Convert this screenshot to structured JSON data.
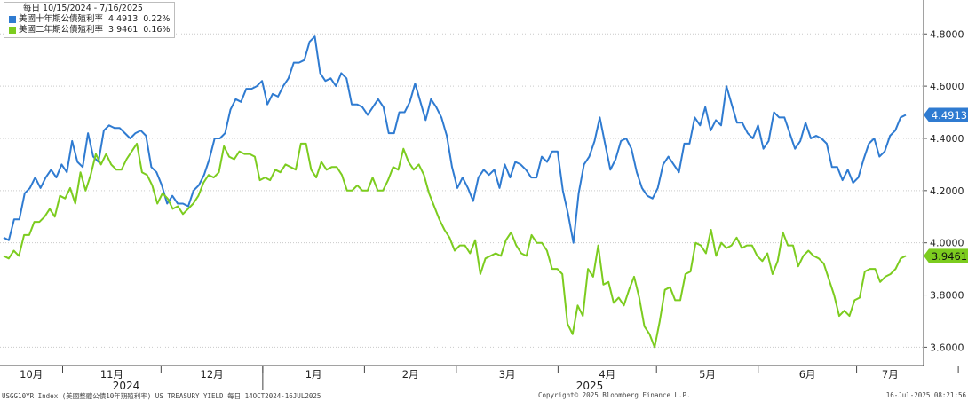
{
  "legend": {
    "header": "每日  10/15/2024 - 7/16/2025",
    "series": [
      {
        "label": "美國十年期公債殖利率",
        "value": "4.4913",
        "change": "0.22%",
        "color": "#2f7bd1"
      },
      {
        "label": "美國二年期公債殖利率",
        "value": "3.9461",
        "change": "0.16%",
        "color": "#7ccc1f"
      }
    ]
  },
  "footer": {
    "left": "USGG10YR Index (美國整體公債10年期殖利率) US TREASURY YIELD  每日 14OCT2024-16JUL2025",
    "center": "Copyright© 2025 Bloomberg Finance L.P.",
    "right": "16-Jul-2025 08:21:56"
  },
  "chart_data": {
    "type": "line",
    "title": "",
    "xlabel": "",
    "ylabel": "",
    "ylim": [
      3.53,
      4.93
    ],
    "y_ticks": [
      "4.8000",
      "4.6000",
      "4.4000",
      "4.2000",
      "4.0000",
      "3.8000",
      "3.6000"
    ],
    "month_labels": [
      "10月",
      "11月",
      "12月",
      "1月",
      "2月",
      "3月",
      "4月",
      "5月",
      "6月",
      "7月"
    ],
    "year_labels": [
      "2024",
      "2025"
    ],
    "x_range": [
      "2024-10-14",
      "2025-07-16"
    ],
    "grid": true,
    "legend_position": "top-left",
    "series": [
      {
        "name": "美國十年期公債殖利率",
        "color": "#2f7bd1",
        "last_value_label": "4.4913",
        "values": [
          4.02,
          4.01,
          4.09,
          4.09,
          4.19,
          4.21,
          4.25,
          4.21,
          4.25,
          4.28,
          4.25,
          4.3,
          4.27,
          4.39,
          4.31,
          4.29,
          4.42,
          4.33,
          4.31,
          4.43,
          4.45,
          4.44,
          4.44,
          4.42,
          4.4,
          4.42,
          4.43,
          4.41,
          4.29,
          4.27,
          4.22,
          4.15,
          4.18,
          4.15,
          4.15,
          4.14,
          4.2,
          4.22,
          4.26,
          4.32,
          4.4,
          4.4,
          4.42,
          4.51,
          4.55,
          4.54,
          4.59,
          4.59,
          4.6,
          4.62,
          4.53,
          4.57,
          4.56,
          4.6,
          4.63,
          4.69,
          4.69,
          4.7,
          4.77,
          4.79,
          4.65,
          4.62,
          4.63,
          4.6,
          4.65,
          4.63,
          4.53,
          4.53,
          4.52,
          4.49,
          4.52,
          4.55,
          4.52,
          4.42,
          4.42,
          4.5,
          4.5,
          4.54,
          4.61,
          4.54,
          4.47,
          4.55,
          4.52,
          4.48,
          4.41,
          4.29,
          4.21,
          4.25,
          4.21,
          4.16,
          4.25,
          4.28,
          4.26,
          4.28,
          4.21,
          4.3,
          4.25,
          4.31,
          4.3,
          4.28,
          4.25,
          4.25,
          4.33,
          4.31,
          4.35,
          4.35,
          4.2,
          4.11,
          4.0,
          4.19,
          4.3,
          4.33,
          4.39,
          4.48,
          4.38,
          4.28,
          4.32,
          4.39,
          4.4,
          4.36,
          4.27,
          4.21,
          4.18,
          4.17,
          4.21,
          4.3,
          4.33,
          4.3,
          4.27,
          4.38,
          4.38,
          4.48,
          4.45,
          4.52,
          4.43,
          4.47,
          4.45,
          4.6,
          4.53,
          4.46,
          4.46,
          4.42,
          4.4,
          4.45,
          4.36,
          4.39,
          4.5,
          4.48,
          4.48,
          4.42,
          4.36,
          4.39,
          4.46,
          4.4,
          4.41,
          4.4,
          4.38,
          4.29,
          4.29,
          4.24,
          4.28,
          4.23,
          4.25,
          4.32,
          4.38,
          4.4,
          4.33,
          4.35,
          4.41,
          4.43,
          4.48,
          4.49
        ]
      },
      {
        "name": "美國二年期公債殖利率",
        "color": "#7ccc1f",
        "last_value_label": "3.9461",
        "values": [
          3.95,
          3.94,
          3.97,
          3.95,
          4.03,
          4.03,
          4.08,
          4.08,
          4.1,
          4.13,
          4.1,
          4.18,
          4.17,
          4.21,
          4.15,
          4.27,
          4.2,
          4.26,
          4.34,
          4.3,
          4.34,
          4.3,
          4.28,
          4.28,
          4.32,
          4.35,
          4.38,
          4.27,
          4.26,
          4.22,
          4.15,
          4.19,
          4.17,
          4.13,
          4.14,
          4.11,
          4.13,
          4.15,
          4.18,
          4.23,
          4.26,
          4.25,
          4.27,
          4.37,
          4.33,
          4.32,
          4.35,
          4.34,
          4.34,
          4.33,
          4.24,
          4.25,
          4.24,
          4.28,
          4.27,
          4.3,
          4.29,
          4.28,
          4.38,
          4.38,
          4.28,
          4.25,
          4.31,
          4.28,
          4.29,
          4.29,
          4.26,
          4.2,
          4.2,
          4.22,
          4.2,
          4.2,
          4.25,
          4.2,
          4.2,
          4.24,
          4.29,
          4.28,
          4.36,
          4.31,
          4.28,
          4.3,
          4.26,
          4.19,
          4.14,
          4.09,
          4.05,
          4.02,
          3.97,
          3.99,
          3.99,
          3.96,
          4.01,
          3.88,
          3.94,
          3.95,
          3.96,
          3.95,
          4.01,
          4.04,
          3.99,
          3.96,
          3.95,
          4.03,
          4.0,
          4.0,
          3.97,
          3.9,
          3.9,
          3.88,
          3.69,
          3.65,
          3.76,
          3.72,
          3.9,
          3.87,
          3.99,
          3.84,
          3.85,
          3.77,
          3.79,
          3.76,
          3.82,
          3.87,
          3.79,
          3.68,
          3.65,
          3.6,
          3.7,
          3.82,
          3.83,
          3.78,
          3.78,
          3.88,
          3.89,
          4.0,
          3.99,
          3.96,
          4.05,
          3.95,
          4.0,
          3.98,
          3.99,
          4.02,
          3.98,
          3.99,
          3.99,
          3.95,
          3.93,
          3.96,
          3.88,
          3.93,
          4.04,
          3.99,
          3.99,
          3.91,
          3.95,
          3.97,
          3.95,
          3.94,
          3.92,
          3.86,
          3.8,
          3.72,
          3.74,
          3.72,
          3.78,
          3.79,
          3.89,
          3.9,
          3.9,
          3.85,
          3.87,
          3.88,
          3.9,
          3.94,
          3.95
        ]
      }
    ]
  }
}
